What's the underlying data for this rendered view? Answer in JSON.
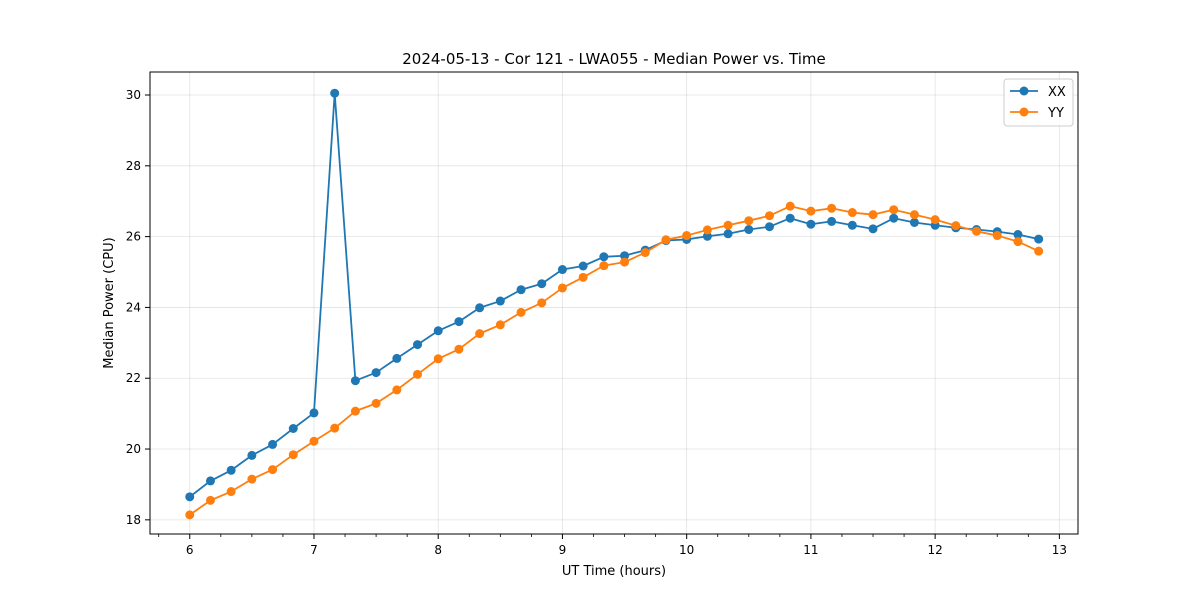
{
  "chart_data": {
    "type": "line",
    "title": "2024-05-13 - Cor 121 - LWA055 - Median Power vs. Time",
    "xlabel": "UT Time (hours)",
    "ylabel": "Median Power (CPU)",
    "xlim": [
      5.68,
      13.15
    ],
    "ylim": [
      17.6,
      30.65
    ],
    "xticks": [
      6,
      7,
      8,
      9,
      10,
      11,
      12,
      13
    ],
    "yticks": [
      18,
      20,
      22,
      24,
      26,
      28,
      30
    ],
    "x_minor_step": 0.25,
    "grid": true,
    "legend_position": "top-right",
    "x": [
      6.0,
      6.1667,
      6.3333,
      6.5,
      6.6667,
      6.8333,
      7.0,
      7.1667,
      7.3333,
      7.5,
      7.6667,
      7.8333,
      8.0,
      8.1667,
      8.3333,
      8.5,
      8.6667,
      8.8333,
      9.0,
      9.1667,
      9.3333,
      9.5,
      9.6667,
      9.8333,
      10.0,
      10.1667,
      10.3333,
      10.5,
      10.6667,
      10.8333,
      11.0,
      11.1667,
      11.3333,
      11.5,
      11.6667,
      11.8333,
      12.0,
      12.1667,
      12.3333,
      12.5,
      12.6667,
      12.8333
    ],
    "series": [
      {
        "name": "XX",
        "color": "#1f77b4",
        "values": [
          18.65,
          19.1,
          19.4,
          19.82,
          20.13,
          20.58,
          21.02,
          30.05,
          21.93,
          22.16,
          22.56,
          22.95,
          23.34,
          23.6,
          23.99,
          24.18,
          24.5,
          24.67,
          25.07,
          25.17,
          25.43,
          25.46,
          25.62,
          25.89,
          25.92,
          26.01,
          26.08,
          26.2,
          26.28,
          26.52,
          26.35,
          26.43,
          26.32,
          26.22,
          26.52,
          26.4,
          26.32,
          26.25,
          26.2,
          26.14,
          26.06,
          25.93
        ]
      },
      {
        "name": "YY",
        "color": "#ff7f0e",
        "values": [
          18.14,
          18.55,
          18.8,
          19.15,
          19.42,
          19.84,
          20.22,
          20.59,
          21.07,
          21.29,
          21.67,
          22.11,
          22.55,
          22.82,
          23.26,
          23.51,
          23.86,
          24.13,
          24.55,
          24.85,
          25.18,
          25.28,
          25.55,
          25.91,
          26.03,
          26.19,
          26.32,
          26.45,
          26.59,
          26.86,
          26.72,
          26.8,
          26.68,
          26.62,
          26.76,
          26.62,
          26.48,
          26.31,
          26.15,
          26.03,
          25.86,
          25.59
        ]
      }
    ]
  }
}
